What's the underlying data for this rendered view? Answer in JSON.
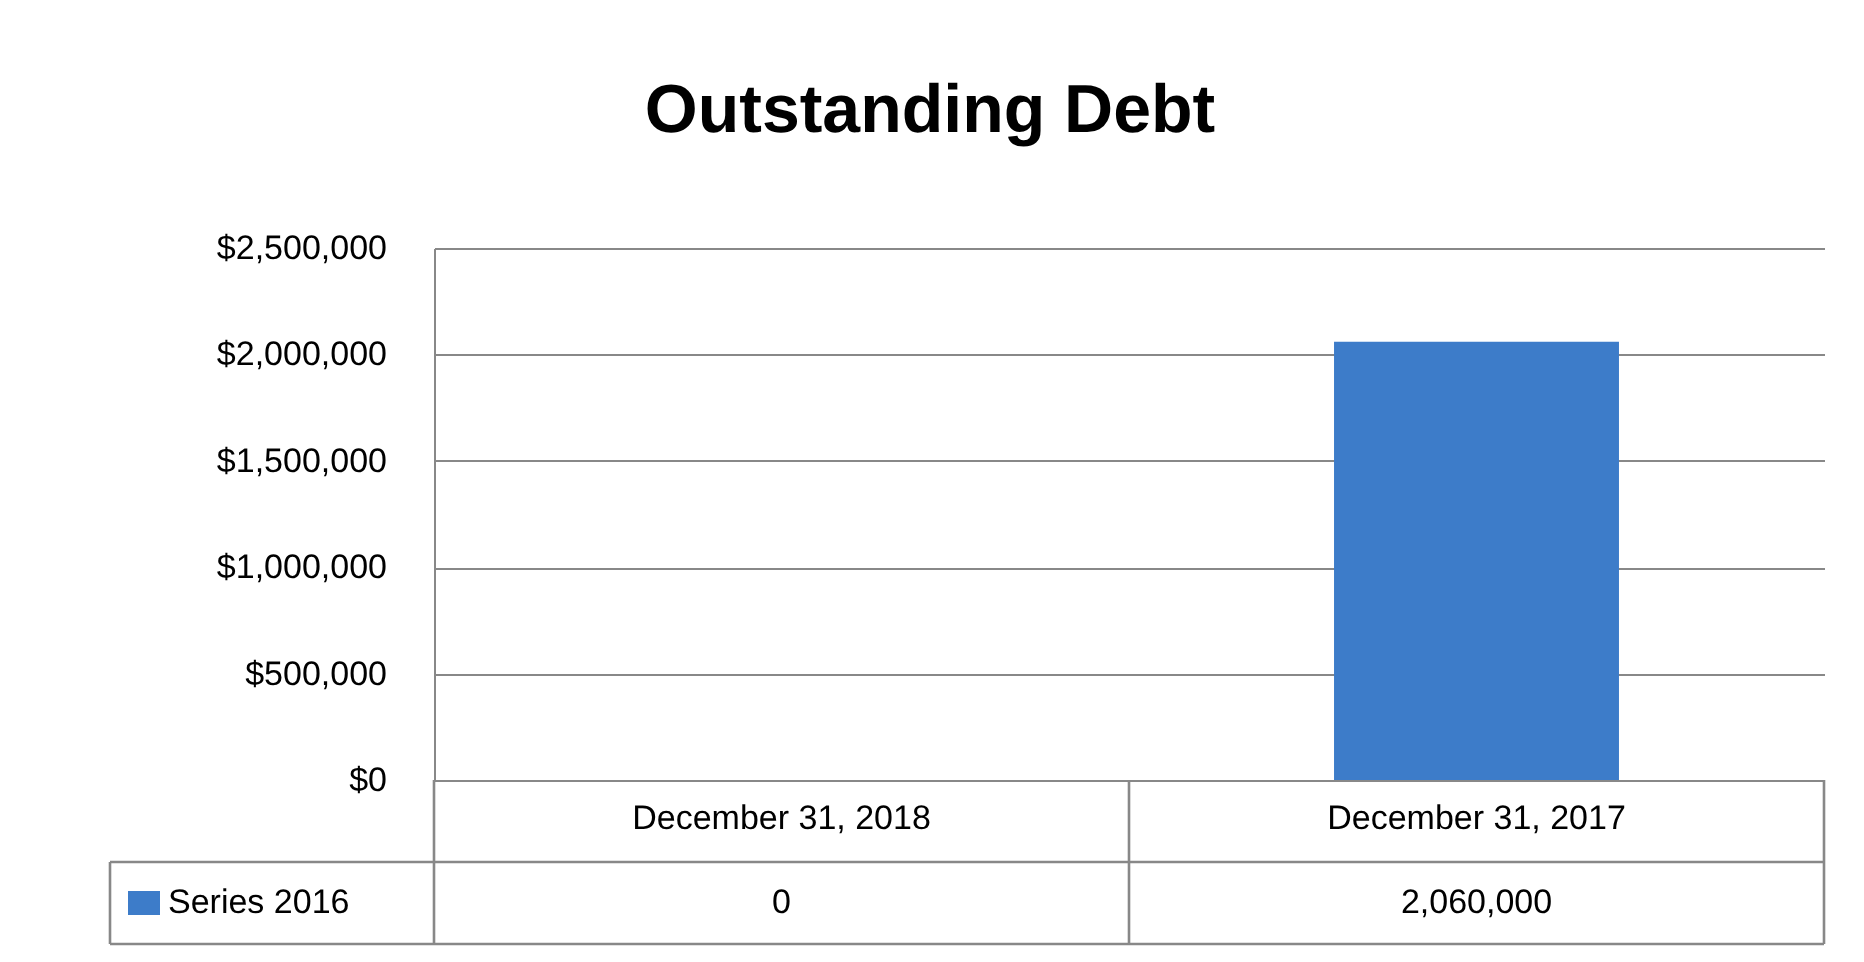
{
  "chart_data": {
    "type": "bar",
    "title": "Outstanding Debt",
    "categories": [
      "December 31, 2018",
      "December 31, 2017"
    ],
    "series": [
      {
        "name": "Series 2016",
        "color": "#3d7cc9",
        "values": [
          0,
          2060000
        ],
        "value_labels": [
          "0",
          "2,060,000"
        ]
      }
    ],
    "ylim": [
      0,
      2500000
    ],
    "yticks": [
      {
        "value": 0,
        "label": "$0"
      },
      {
        "value": 500000,
        "label": "$500,000"
      },
      {
        "value": 1000000,
        "label": "$1,000,000"
      },
      {
        "value": 1500000,
        "label": "$1,500,000"
      },
      {
        "value": 2000000,
        "label": "$2,000,000"
      },
      {
        "value": 2500000,
        "label": "$2,500,000"
      }
    ],
    "grid": "y",
    "legend": "bottom left"
  }
}
